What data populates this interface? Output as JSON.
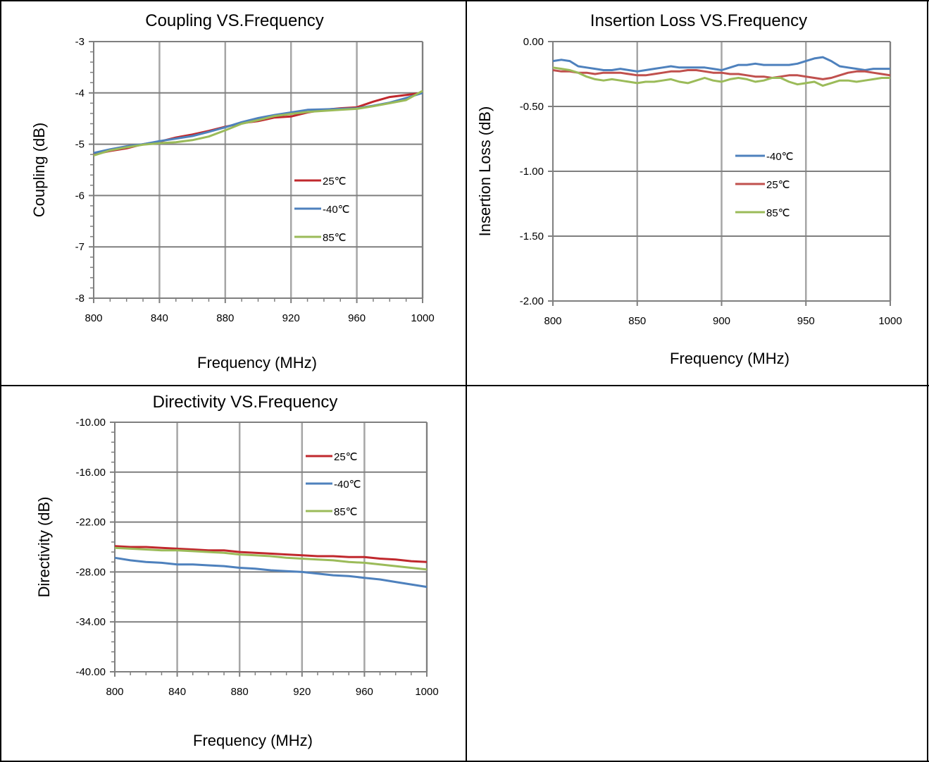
{
  "chart_data": [
    {
      "type": "line",
      "title": "Coupling VS.Frequency",
      "xlabel": "Frequency (MHz)",
      "ylabel": "Coupling  (dB)",
      "xlim": [
        800,
        1000
      ],
      "ylim": [
        -8,
        -3
      ],
      "xticks": [
        800,
        840,
        880,
        920,
        960,
        1000
      ],
      "yticks": [
        -3,
        -4,
        -5,
        -6,
        -7,
        -8
      ],
      "ytick_labels": [
        "-3",
        "-4",
        "-5",
        "-6",
        "-7",
        "-8"
      ],
      "grid": true,
      "legend": "right",
      "x": [
        800,
        810,
        820,
        830,
        840,
        850,
        860,
        870,
        880,
        890,
        900,
        910,
        920,
        930,
        940,
        950,
        960,
        970,
        980,
        990,
        1000
      ],
      "series": [
        {
          "name": "25℃",
          "color": "#c0282d",
          "values": [
            -5.2,
            -5.13,
            -5.08,
            -5.0,
            -4.95,
            -4.87,
            -4.81,
            -4.74,
            -4.66,
            -4.59,
            -4.55,
            -4.48,
            -4.46,
            -4.38,
            -4.33,
            -4.3,
            -4.28,
            -4.17,
            -4.08,
            -4.04,
            -4.0
          ]
        },
        {
          "name": "-40℃",
          "color": "#4e81bd",
          "values": [
            -5.17,
            -5.1,
            -5.04,
            -5.0,
            -4.94,
            -4.89,
            -4.84,
            -4.76,
            -4.67,
            -4.57,
            -4.49,
            -4.43,
            -4.38,
            -4.33,
            -4.32,
            -4.31,
            -4.3,
            -4.25,
            -4.19,
            -4.1,
            -4.0
          ]
        },
        {
          "name": "85℃",
          "color": "#9bbb59",
          "values": [
            -5.22,
            -5.12,
            -5.06,
            -5.01,
            -4.98,
            -4.96,
            -4.92,
            -4.85,
            -4.73,
            -4.6,
            -4.53,
            -4.45,
            -4.41,
            -4.37,
            -4.35,
            -4.33,
            -4.31,
            -4.26,
            -4.2,
            -4.14,
            -3.96
          ]
        }
      ]
    },
    {
      "type": "line",
      "title": "Insertion Loss VS.Frequency",
      "xlabel": "Frequency (MHz)",
      "ylabel": "Insertion Loss (dB)",
      "xlim": [
        800,
        1000
      ],
      "ylim": [
        -2.0,
        0.0
      ],
      "xticks": [
        800,
        850,
        900,
        950,
        1000
      ],
      "yticks": [
        0.0,
        -0.5,
        -1.0,
        -1.5,
        -2.0
      ],
      "ytick_labels": [
        "0.00",
        "-0.50",
        "-1.00",
        "-1.50",
        "-2.00"
      ],
      "grid": true,
      "legend": "right",
      "x": [
        800,
        805,
        810,
        815,
        820,
        825,
        830,
        835,
        840,
        845,
        850,
        855,
        860,
        865,
        870,
        875,
        880,
        885,
        890,
        895,
        900,
        905,
        910,
        915,
        920,
        925,
        930,
        935,
        940,
        945,
        950,
        955,
        960,
        965,
        970,
        975,
        980,
        985,
        990,
        995,
        1000
      ],
      "series": [
        {
          "name": "-40℃",
          "color": "#4e81bd",
          "values": [
            -0.15,
            -0.14,
            -0.15,
            -0.19,
            -0.2,
            -0.21,
            -0.22,
            -0.22,
            -0.21,
            -0.22,
            -0.23,
            -0.22,
            -0.21,
            -0.2,
            -0.19,
            -0.2,
            -0.2,
            -0.2,
            -0.2,
            -0.21,
            -0.22,
            -0.2,
            -0.18,
            -0.18,
            -0.17,
            -0.18,
            -0.18,
            -0.18,
            -0.18,
            -0.17,
            -0.15,
            -0.13,
            -0.12,
            -0.15,
            -0.19,
            -0.2,
            -0.21,
            -0.22,
            -0.21,
            -0.21,
            -0.21
          ]
        },
        {
          "name": "25℃",
          "color": "#c0504d",
          "values": [
            -0.22,
            -0.23,
            -0.23,
            -0.24,
            -0.24,
            -0.25,
            -0.24,
            -0.24,
            -0.24,
            -0.25,
            -0.26,
            -0.26,
            -0.25,
            -0.24,
            -0.23,
            -0.23,
            -0.22,
            -0.22,
            -0.23,
            -0.24,
            -0.24,
            -0.25,
            -0.25,
            -0.26,
            -0.27,
            -0.27,
            -0.28,
            -0.27,
            -0.26,
            -0.26,
            -0.27,
            -0.28,
            -0.29,
            -0.28,
            -0.26,
            -0.24,
            -0.23,
            -0.23,
            -0.24,
            -0.25,
            -0.26
          ]
        },
        {
          "name": "85℃",
          "color": "#9bbb59",
          "values": [
            -0.2,
            -0.21,
            -0.22,
            -0.24,
            -0.27,
            -0.29,
            -0.3,
            -0.29,
            -0.3,
            -0.31,
            -0.32,
            -0.31,
            -0.31,
            -0.3,
            -0.29,
            -0.31,
            -0.32,
            -0.3,
            -0.28,
            -0.3,
            -0.31,
            -0.29,
            -0.28,
            -0.29,
            -0.31,
            -0.3,
            -0.28,
            -0.28,
            -0.31,
            -0.33,
            -0.32,
            -0.31,
            -0.34,
            -0.32,
            -0.3,
            -0.3,
            -0.31,
            -0.3,
            -0.29,
            -0.28,
            -0.28
          ]
        }
      ]
    },
    {
      "type": "line",
      "title": "Directivity VS.Frequency",
      "xlabel": "Frequency (MHz)",
      "ylabel": "Directivity (dB)",
      "xlim": [
        800,
        1000
      ],
      "ylim": [
        -40,
        -10
      ],
      "xticks": [
        800,
        840,
        880,
        920,
        960,
        1000
      ],
      "yticks": [
        -10,
        -16,
        -22,
        -28,
        -34,
        -40
      ],
      "ytick_labels": [
        "-10.00",
        "-16.00",
        "-22.00",
        "-28.00",
        "-34.00",
        "-40.00"
      ],
      "grid": true,
      "legend": "top-right",
      "x": [
        800,
        810,
        820,
        830,
        840,
        850,
        860,
        870,
        880,
        890,
        900,
        910,
        920,
        930,
        940,
        950,
        960,
        970,
        980,
        990,
        1000
      ],
      "series": [
        {
          "name": "25℃",
          "color": "#c0282d",
          "values": [
            -24.9,
            -25.0,
            -25.0,
            -25.1,
            -25.2,
            -25.3,
            -25.4,
            -25.4,
            -25.6,
            -25.7,
            -25.8,
            -25.9,
            -26.0,
            -26.1,
            -26.1,
            -26.2,
            -26.2,
            -26.4,
            -26.5,
            -26.7,
            -26.8
          ]
        },
        {
          "name": "-40℃",
          "color": "#4e81bd",
          "values": [
            -26.3,
            -26.6,
            -26.8,
            -26.9,
            -27.1,
            -27.1,
            -27.2,
            -27.3,
            -27.5,
            -27.6,
            -27.8,
            -27.9,
            -28.0,
            -28.2,
            -28.4,
            -28.5,
            -28.7,
            -28.9,
            -29.2,
            -29.5,
            -29.8
          ]
        },
        {
          "name": "85℃",
          "color": "#9bbb59",
          "values": [
            -25.1,
            -25.2,
            -25.3,
            -25.4,
            -25.4,
            -25.5,
            -25.6,
            -25.7,
            -25.9,
            -26.0,
            -26.1,
            -26.3,
            -26.4,
            -26.5,
            -26.6,
            -26.8,
            -26.9,
            -27.1,
            -27.3,
            -27.5,
            -27.7
          ]
        }
      ]
    }
  ]
}
